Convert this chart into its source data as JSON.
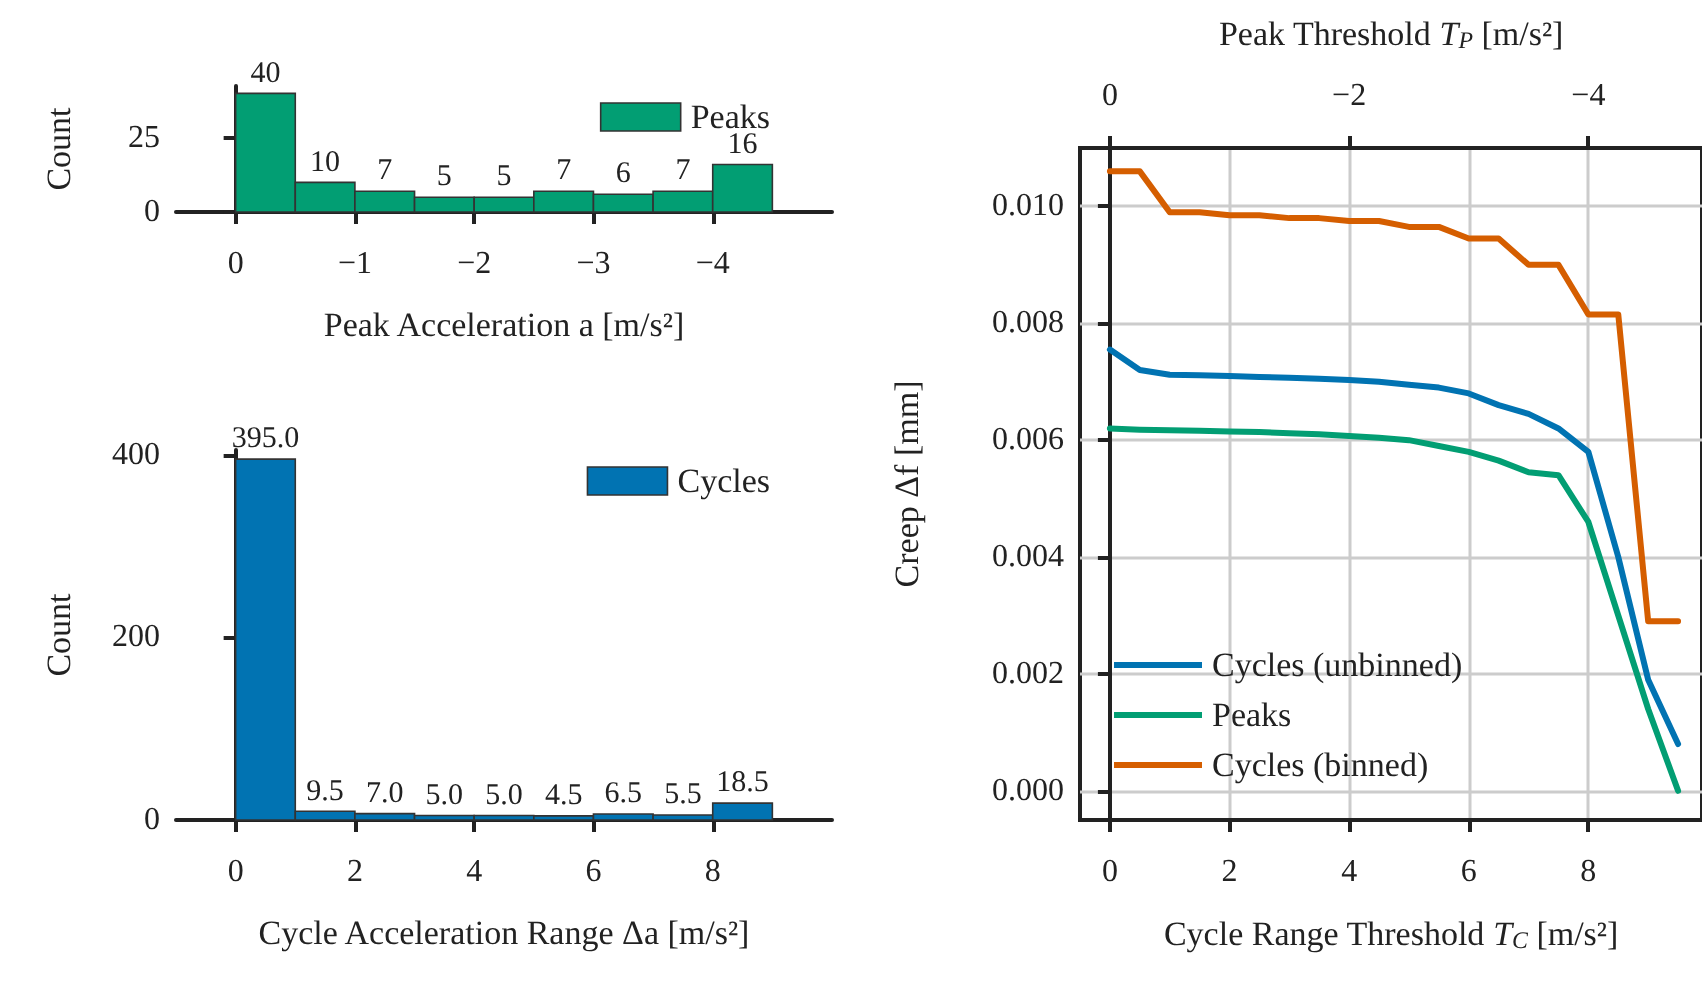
{
  "chart_data": [
    {
      "type": "histogram",
      "xlabel": "Peak Acceleration a [m/s²]",
      "ylabel": "Count",
      "bins": [
        0,
        -0.5,
        -1,
        -1.5,
        -2,
        -2.5,
        -3,
        -3.5,
        -4,
        -4.5
      ],
      "series": [
        {
          "name": "Peaks",
          "color": "#029e73",
          "values": [
            40,
            10,
            7,
            5,
            5,
            7,
            6,
            7,
            16
          ]
        }
      ],
      "xlim": [
        0.5,
        -5.0
      ],
      "xticks": [
        0,
        {
          "value": -1,
          "label": "−1"
        },
        {
          "value": -2,
          "label": "−2"
        },
        {
          "value": -3,
          "label": "−3"
        },
        {
          "value": -4,
          "label": "−4"
        }
      ],
      "ylim": [
        0,
        42.5
      ],
      "yticks": [
        0,
        25
      ],
      "data_labels": true,
      "legend": "top right",
      "grid": false
    },
    {
      "type": "histogram",
      "xlabel": "Cycle Acceleration Range Δa [m/s²]",
      "ylabel": "Count",
      "bins": [
        0,
        1,
        2,
        3,
        4,
        5,
        6,
        7,
        8,
        9
      ],
      "series": [
        {
          "name": "Cycles",
          "color": "#0173b2",
          "values": [
            395,
            9.5,
            7,
            5,
            5,
            4.5,
            6.5,
            5.5,
            18.5
          ],
          "value_labels": [
            "395.0",
            "9.5",
            "7.0",
            "5.0",
            "5.0",
            "4.5",
            "6.5",
            "5.5",
            "18.5"
          ]
        }
      ],
      "xlim": [
        -1,
        10
      ],
      "xticks": [
        0,
        2,
        4,
        6,
        8
      ],
      "ylim": [
        0,
        405
      ],
      "yticks": [
        0,
        200,
        400
      ],
      "legend": "top right",
      "grid": false
    },
    {
      "type": "line",
      "xlabel": "Cycle Range Threshold T$_{C}$ [m/s²]",
      "x2label": "Peak Threshold T$_{P}$ [m/s²]",
      "ylabel": "Creep Δf [mm]",
      "x": [
        0,
        0.5,
        1,
        1.5,
        2,
        2.5,
        3,
        3.5,
        4,
        4.5,
        5,
        5.5,
        6,
        6.5,
        7,
        7.5,
        8,
        8.5,
        9,
        9.5
      ],
      "series": [
        {
          "name": "Cycles (unbinned)",
          "color": "#0173b2",
          "values": [
            0.00755,
            0.0072,
            0.00712,
            0.00711,
            0.0071,
            0.00708,
            0.00707,
            0.00705,
            0.00703,
            0.007,
            0.00695,
            0.0069,
            0.0068,
            0.0066,
            0.00645,
            0.0062,
            0.0058,
            0.004,
            0.0019,
            0.0008
          ]
        },
        {
          "name": "Peaks",
          "color": "#029e73",
          "values": [
            0.0062,
            0.00618,
            0.00617,
            0.00616,
            0.00615,
            0.00614,
            0.00612,
            0.0061,
            0.00607,
            0.00604,
            0.006,
            0.0059,
            0.0058,
            0.00565,
            0.00545,
            0.0054,
            0.0046,
            0.003,
            0.0014,
            0.0
          ]
        },
        {
          "name": "Cycles (binned)",
          "color": "#d55e00",
          "values": [
            0.0106,
            0.0106,
            0.0099,
            0.0099,
            0.00985,
            0.00985,
            0.0098,
            0.0098,
            0.00975,
            0.00975,
            0.00965,
            0.00965,
            0.00945,
            0.00945,
            0.009,
            0.009,
            0.00815,
            0.00815,
            0.0029,
            0.0029
          ]
        }
      ],
      "xlim": [
        -0.5,
        9.9
      ],
      "xticks": [
        0,
        2,
        4,
        6,
        8
      ],
      "x2lim": [
        0.25,
        -4.95
      ],
      "x2ticks": [
        0,
        {
          "value": -2,
          "label": "−2"
        },
        {
          "value": -4,
          "label": "−4"
        }
      ],
      "ylim": [
        -0.0005,
        0.011
      ],
      "yticks": [
        {
          "value": 0,
          "label": "0.000"
        },
        {
          "value": 0.002,
          "label": "0.002"
        },
        {
          "value": 0.004,
          "label": "0.004"
        },
        {
          "value": 0.006,
          "label": "0.006"
        },
        {
          "value": 0.008,
          "label": "0.008"
        },
        {
          "value": 0.01,
          "label": "0.010"
        }
      ],
      "grid": true,
      "legend": "bottom left"
    }
  ]
}
